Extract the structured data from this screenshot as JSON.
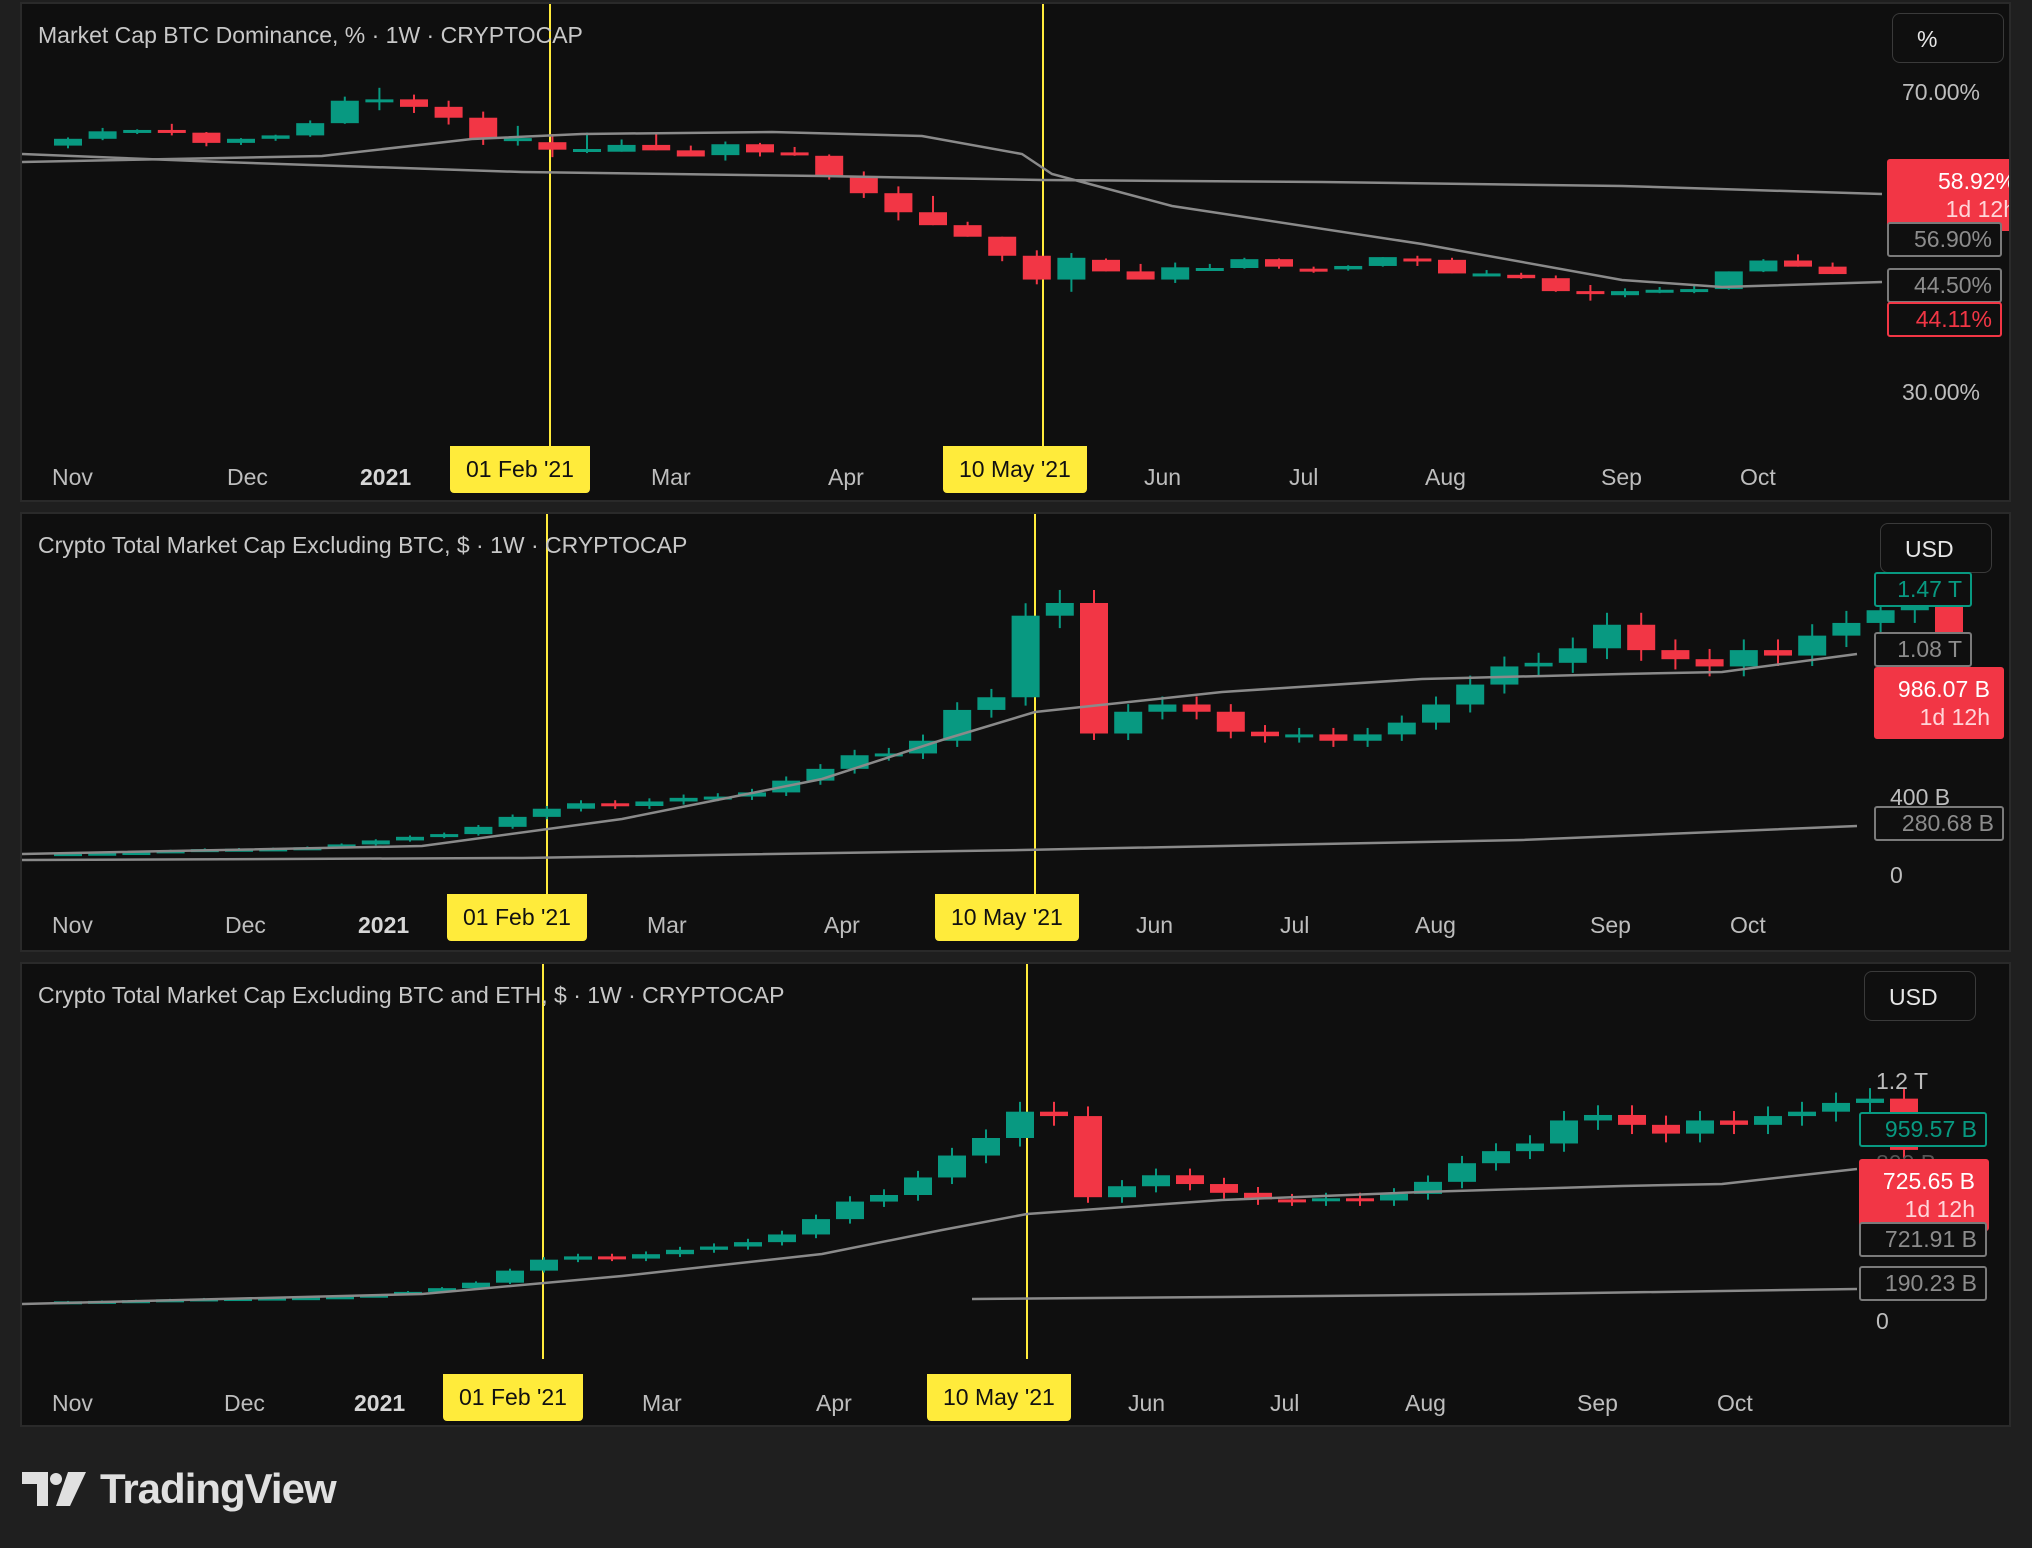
{
  "colors": {
    "up": "#089981",
    "down": "#F23645",
    "marker": "#FFEB3B",
    "background": "#0F0F0F",
    "ma": "#8a8a8a"
  },
  "logo": {
    "text": "TradingView",
    "icon": "tradingview-logo-icon"
  },
  "markers": [
    "01 Feb '21",
    "10 May '21"
  ],
  "x_ticks": [
    "Nov",
    "Dec",
    "2021",
    "Mar",
    "Apr",
    "Jun",
    "Jul",
    "Aug",
    "Sep",
    "Oct"
  ],
  "panels": [
    {
      "title": "Market Cap BTC Dominance, % · 1W · CRYPTOCAP",
      "unit_button": "%",
      "price_ticks": [
        "70.00%",
        "30.00%"
      ],
      "labels": {
        "current": "58.92%",
        "countdown": "1d 12h",
        "ma_a": "56.90%",
        "ma_b": "44.50%",
        "last": "44.11%"
      }
    },
    {
      "title": "Crypto Total Market Cap Excluding BTC, $ · 1W · CRYPTOCAP",
      "unit_button": "USD",
      "price_ticks": [
        "400 B",
        "0"
      ],
      "labels": {
        "high": "1.47 T",
        "ma_a": "1.08 T",
        "current": "986.07 B",
        "countdown": "1d 12h",
        "ma_b": "280.68 B"
      }
    },
    {
      "title": "Crypto Total Market Cap Excluding BTC and ETH, $ · 1W · CRYPTOCAP",
      "unit_button": "USD",
      "price_ticks": [
        "1.2 T",
        "800 B",
        "0"
      ],
      "labels": {
        "high": "959.57 B",
        "current": "725.65 B",
        "countdown": "1d 12h",
        "ma_a": "721.91 B",
        "ma_b": "190.23 B"
      }
    }
  ],
  "chart_data": [
    {
      "type": "candlestick",
      "title": "Market Cap BTC Dominance, % · 1W · CRYPTOCAP",
      "interval": "1W",
      "xlabel": "",
      "ylabel": "%",
      "x_ticks": [
        "Nov",
        "Dec",
        "2021",
        "Mar",
        "Apr",
        "Jun",
        "Jul",
        "Aug",
        "Sep",
        "Oct"
      ],
      "y_ticks": [
        "70.00%",
        "30.00%"
      ],
      "annotations": [
        "01 Feb '21",
        "10 May '21"
      ],
      "price_labels": [
        "58.92%",
        "56.90%",
        "44.50%",
        "44.11%"
      ],
      "candles_ohlc": [
        [
          63.0,
          64.2,
          62.6,
          64.0
        ],
        [
          64.0,
          65.6,
          63.8,
          65.1
        ],
        [
          65.1,
          65.4,
          64.7,
          65.3
        ],
        [
          65.3,
          66.2,
          64.5,
          64.9
        ],
        [
          64.9,
          65.0,
          62.9,
          63.4
        ],
        [
          63.4,
          64.1,
          63.1,
          64.0
        ],
        [
          64.0,
          64.6,
          63.7,
          64.5
        ],
        [
          64.5,
          66.7,
          64.3,
          66.3
        ],
        [
          66.3,
          70.2,
          66.2,
          69.6
        ],
        [
          69.6,
          71.5,
          68.2,
          69.8
        ],
        [
          69.8,
          70.5,
          67.8,
          68.7
        ],
        [
          68.7,
          69.6,
          66.1,
          67.1
        ],
        [
          67.1,
          68.0,
          63.1,
          64.0
        ],
        [
          64.0,
          65.9,
          63.0,
          64.1
        ],
        [
          63.5,
          64.7,
          61.3,
          62.4
        ],
        [
          62.4,
          64.9,
          61.9,
          62.5
        ],
        [
          62.1,
          63.9,
          62.2,
          63.1
        ],
        [
          63.1,
          64.7,
          62.4,
          62.3
        ],
        [
          62.3,
          63.0,
          61.9,
          61.4
        ],
        [
          61.6,
          63.6,
          60.8,
          63.2
        ],
        [
          63.2,
          63.4,
          61.4,
          62.0
        ],
        [
          62.0,
          62.8,
          61.5,
          61.7
        ],
        [
          61.5,
          61.7,
          58.0,
          58.4
        ],
        [
          58.4,
          59.2,
          55.3,
          56.0
        ],
        [
          56.0,
          57.0,
          52.0,
          53.2
        ],
        [
          53.2,
          55.6,
          51.5,
          51.3
        ],
        [
          51.3,
          51.8,
          50.6,
          49.6
        ],
        [
          49.6,
          49.2,
          46.0,
          46.8
        ],
        [
          46.8,
          47.6,
          42.6,
          43.3
        ],
        [
          43.3,
          47.2,
          41.5,
          46.5
        ],
        [
          46.2,
          46.4,
          44.9,
          44.5
        ],
        [
          44.5,
          45.6,
          43.6,
          43.3
        ],
        [
          43.3,
          45.8,
          42.8,
          45.1
        ],
        [
          45.0,
          45.6,
          44.9,
          45.0
        ],
        [
          45.0,
          46.5,
          44.9,
          46.3
        ],
        [
          46.3,
          46.4,
          44.9,
          45.2
        ],
        [
          44.9,
          45.2,
          44.3,
          44.8
        ],
        [
          44.8,
          45.4,
          44.6,
          45.3
        ],
        [
          45.3,
          46.5,
          45.2,
          46.6
        ],
        [
          46.4,
          46.8,
          45.3,
          46.2
        ],
        [
          46.2,
          46.5,
          44.4,
          44.2
        ],
        [
          44.2,
          44.7,
          43.8,
          44.2
        ],
        [
          44.0,
          44.3,
          43.4,
          43.5
        ],
        [
          43.5,
          43.9,
          41.5,
          41.6
        ],
        [
          41.6,
          42.5,
          40.2,
          41.5
        ],
        [
          41.0,
          42.0,
          40.7,
          41.6
        ],
        [
          41.6,
          42.2,
          41.3,
          41.8
        ],
        [
          41.6,
          42.5,
          41.3,
          41.9
        ],
        [
          41.9,
          44.5,
          41.8,
          44.5
        ],
        [
          44.5,
          46.3,
          44.4,
          46.1
        ],
        [
          46.1,
          47.0,
          45.3,
          45.2
        ],
        [
          45.2,
          45.8,
          44.6,
          44.11
        ]
      ],
      "moving_averages": [
        {
          "name": "MA short",
          "last": 44.5
        },
        {
          "name": "MA long",
          "last": 56.9
        }
      ],
      "ylim": [
        25,
        75
      ]
    },
    {
      "type": "candlestick",
      "title": "Crypto Total Market Cap Excluding BTC, $ · 1W · CRYPTOCAP",
      "interval": "1W",
      "xlabel": "",
      "ylabel": "USD",
      "x_ticks": [
        "Nov",
        "Dec",
        "2021",
        "Mar",
        "Apr",
        "Jun",
        "Jul",
        "Aug",
        "Sep",
        "Oct"
      ],
      "y_ticks": [
        "400 B",
        "0"
      ],
      "annotations": [
        "01 Feb '21",
        "10 May '21"
      ],
      "price_labels": [
        "1.47 T",
        "1.08 T",
        "986.07 B",
        "280.68 B"
      ],
      "approx_close_B": [
        60,
        62,
        66,
        75,
        82,
        84,
        86,
        92,
        108,
        130,
        150,
        165,
        205,
        260,
        305,
        335,
        320,
        345,
        365,
        372,
        395,
        460,
        525,
        600,
        610,
        680,
        850,
        920,
        1370,
        1440,
        720,
        840,
        880,
        840,
        730,
        705,
        715,
        680,
        715,
        780,
        880,
        990,
        1090,
        1110,
        1190,
        1320,
        1180,
        1130,
        1090,
        1180,
        1150,
        1260,
        1330,
        1400,
        1470,
        986.07
      ],
      "moving_averages": [
        {
          "name": "MA short",
          "last": 1080
        },
        {
          "name": "MA long",
          "last": 280.68
        }
      ],
      "ylim": [
        0,
        1600
      ]
    },
    {
      "type": "candlestick",
      "title": "Crypto Total Market Cap Excluding BTC and ETH, $ · 1W · CRYPTOCAP",
      "interval": "1W",
      "xlabel": "",
      "ylabel": "USD",
      "x_ticks": [
        "Nov",
        "Dec",
        "2021",
        "Mar",
        "Apr",
        "Jun",
        "Jul",
        "Aug",
        "Sep",
        "Oct"
      ],
      "y_ticks": [
        "1.2 T",
        "800 B",
        "0"
      ],
      "annotations": [
        "01 Feb '21",
        "10 May '21"
      ],
      "price_labels": [
        "959.57 B",
        "725.65 B",
        "721.91 B",
        "190.23 B"
      ],
      "approx_close_B": [
        35,
        37,
        40,
        44,
        48,
        50,
        52,
        54,
        58,
        65,
        78,
        95,
        120,
        175,
        225,
        240,
        230,
        250,
        270,
        285,
        305,
        340,
        410,
        490,
        520,
        600,
        700,
        780,
        900,
        880,
        510,
        560,
        610,
        570,
        530,
        500,
        495,
        505,
        495,
        525,
        580,
        665,
        720,
        755,
        860,
        885,
        840,
        800,
        860,
        840,
        880,
        900,
        940,
        959.57,
        725.65
      ],
      "moving_averages": [
        {
          "name": "MA short",
          "last": 721.91
        },
        {
          "name": "MA long",
          "last": 190.23
        }
      ],
      "ylim": [
        0,
        1300
      ]
    }
  ]
}
